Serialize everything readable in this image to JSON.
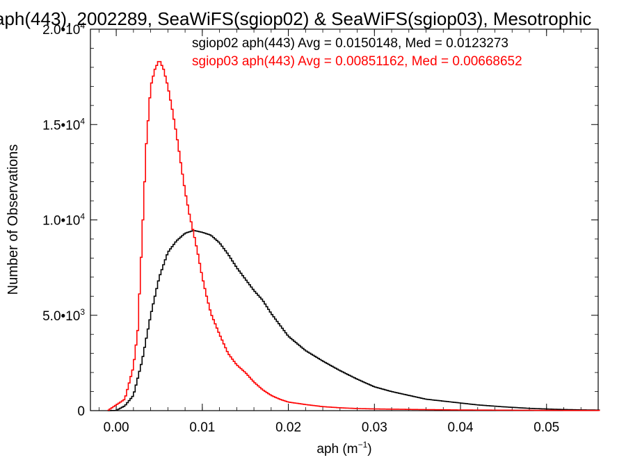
{
  "chart_data": {
    "type": "line",
    "title": "aph(443), 2002289, SeaWiFS(sgiop02) & SeaWiFS(sgiop03), Mesotrophic",
    "xlabel_main": "aph (m",
    "xlabel_sup": "−1",
    "xlabel_tail": ")",
    "ylabel": "Number of Observations",
    "xlim": [
      -0.003,
      0.056
    ],
    "ylim": [
      0,
      20000
    ],
    "x_ticks": [
      {
        "value": 0.0,
        "label": "0.00"
      },
      {
        "value": 0.01,
        "label": "0.01"
      },
      {
        "value": 0.02,
        "label": "0.02"
      },
      {
        "value": 0.03,
        "label": "0.03"
      },
      {
        "value": 0.04,
        "label": "0.04"
      },
      {
        "value": 0.05,
        "label": "0.05"
      }
    ],
    "y_ticks": [
      {
        "value": 0,
        "label": "0",
        "sup": ""
      },
      {
        "value": 5000,
        "label": "5.0•10",
        "sup": "3"
      },
      {
        "value": 10000,
        "label": "1.0•10",
        "sup": "4"
      },
      {
        "value": 15000,
        "label": "1.5•10",
        "sup": "4"
      },
      {
        "value": 20000,
        "label": "2.0•10",
        "sup": "4"
      }
    ],
    "series": [
      {
        "name": "sgiop02",
        "color": "#000000",
        "legend": "sgiop02 aph(443) Avg = 0.0150148, Med = 0.0123273",
        "points": [
          [
            -0.001,
            0
          ],
          [
            0,
            10
          ],
          [
            0.001,
            250
          ],
          [
            0.002,
            800
          ],
          [
            0.003,
            2600
          ],
          [
            0.004,
            5000
          ],
          [
            0.005,
            7000
          ],
          [
            0.006,
            8300
          ],
          [
            0.007,
            8900
          ],
          [
            0.008,
            9300
          ],
          [
            0.009,
            9450
          ],
          [
            0.01,
            9350
          ],
          [
            0.011,
            9200
          ],
          [
            0.012,
            8800
          ],
          [
            0.013,
            8200
          ],
          [
            0.014,
            7500
          ],
          [
            0.015,
            6900
          ],
          [
            0.016,
            6300
          ],
          [
            0.017,
            5800
          ],
          [
            0.018,
            5100
          ],
          [
            0.019,
            4500
          ],
          [
            0.02,
            3900
          ],
          [
            0.022,
            3150
          ],
          [
            0.024,
            2600
          ],
          [
            0.026,
            2100
          ],
          [
            0.028,
            1650
          ],
          [
            0.03,
            1250
          ],
          [
            0.032,
            1000
          ],
          [
            0.034,
            800
          ],
          [
            0.036,
            600
          ],
          [
            0.038,
            500
          ],
          [
            0.04,
            400
          ],
          [
            0.042,
            300
          ],
          [
            0.045,
            200
          ],
          [
            0.048,
            120
          ],
          [
            0.051,
            70
          ],
          [
            0.054,
            40
          ],
          [
            0.056,
            30
          ]
        ]
      },
      {
        "name": "sgiop03",
        "color": "#ff0000",
        "legend": "sgiop03 aph(443) Avg = 0.00851162, Med = 0.00668652",
        "points": [
          [
            -0.001,
            0
          ],
          [
            0,
            300
          ],
          [
            0.001,
            600
          ],
          [
            0.002,
            2300
          ],
          [
            0.0025,
            4200
          ],
          [
            0.003,
            9000
          ],
          [
            0.0035,
            14000
          ],
          [
            0.004,
            17000
          ],
          [
            0.0045,
            17900
          ],
          [
            0.005,
            18400
          ],
          [
            0.0055,
            17900
          ],
          [
            0.006,
            17000
          ],
          [
            0.0065,
            15800
          ],
          [
            0.007,
            14500
          ],
          [
            0.0075,
            13000
          ],
          [
            0.008,
            11500
          ],
          [
            0.0085,
            10300
          ],
          [
            0.009,
            9300
          ],
          [
            0.0095,
            8200
          ],
          [
            0.01,
            7000
          ],
          [
            0.0105,
            6000
          ],
          [
            0.011,
            5100
          ],
          [
            0.012,
            4000
          ],
          [
            0.013,
            3000
          ],
          [
            0.014,
            2400
          ],
          [
            0.015,
            2000
          ],
          [
            0.016,
            1500
          ],
          [
            0.017,
            1100
          ],
          [
            0.018,
            800
          ],
          [
            0.019,
            600
          ],
          [
            0.02,
            450
          ],
          [
            0.022,
            320
          ],
          [
            0.024,
            210
          ],
          [
            0.026,
            150
          ],
          [
            0.028,
            110
          ],
          [
            0.03,
            90
          ],
          [
            0.035,
            60
          ],
          [
            0.04,
            35
          ],
          [
            0.045,
            25
          ],
          [
            0.05,
            15
          ],
          [
            0.056,
            10
          ]
        ]
      }
    ],
    "grid": false,
    "legend_placement": "top-right"
  }
}
